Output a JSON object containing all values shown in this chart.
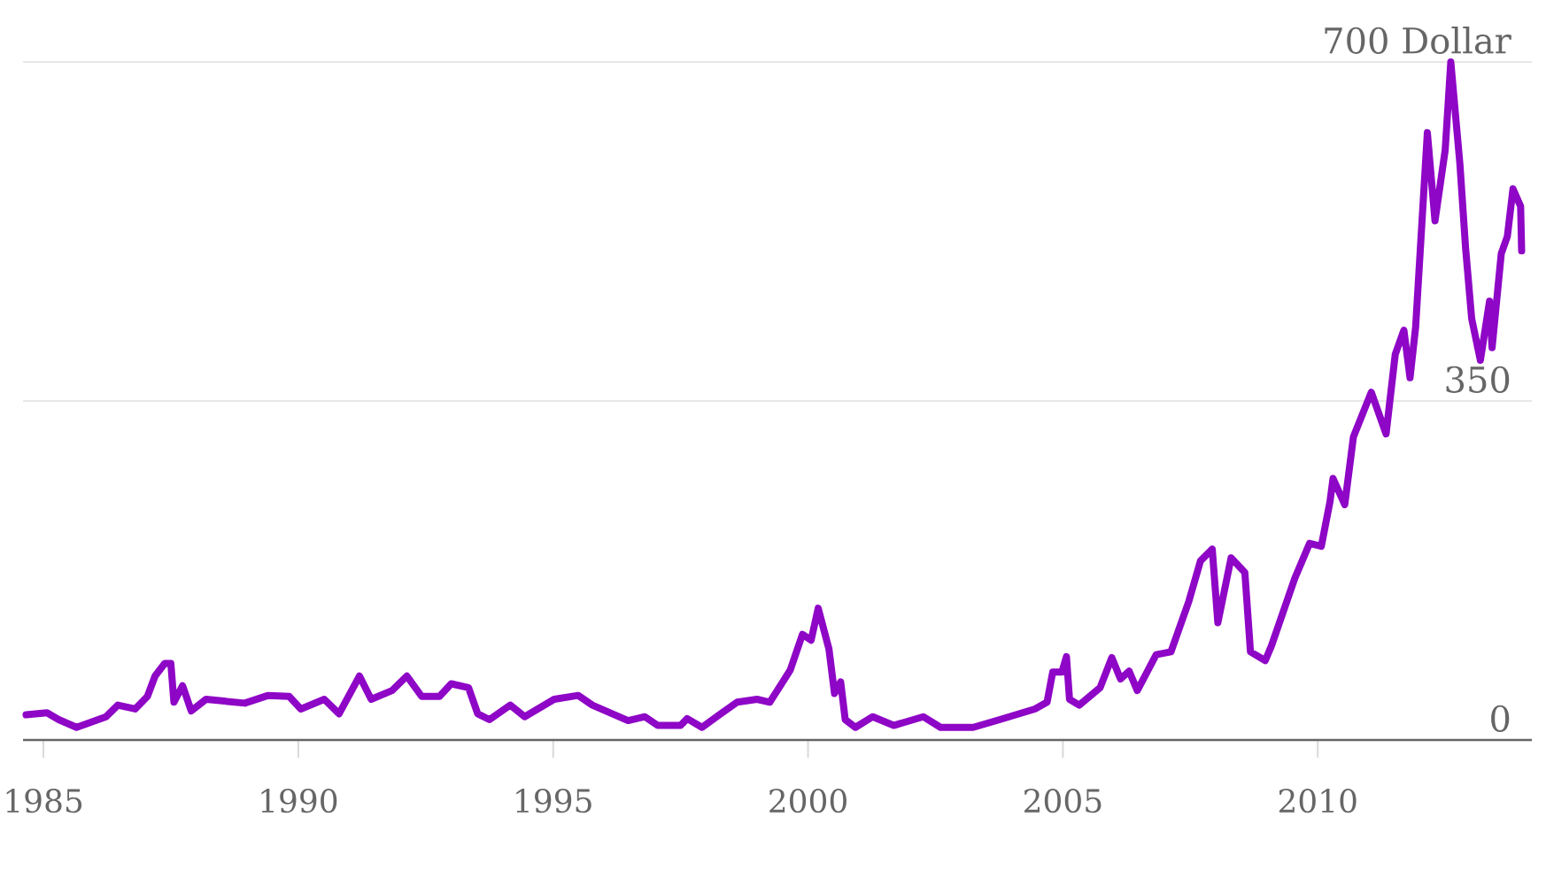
{
  "chart_data": {
    "type": "line",
    "color": "#8e06c6",
    "grid": "y",
    "marker": "none",
    "line_style": "solid",
    "xlim": [
      1984.6,
      2014.2
    ],
    "xticks": [
      1985,
      1990,
      1995,
      2000,
      2005,
      2010
    ],
    "ylim": [
      0,
      700
    ],
    "yticks": [
      0,
      350,
      {
        "value": 700,
        "label": "700 Dollar"
      }
    ],
    "x": [
      1984.66,
      1985.07,
      1985.3,
      1985.65,
      1986.23,
      1986.46,
      1986.8,
      1987.04,
      1987.19,
      1987.38,
      1987.5,
      1987.56,
      1987.73,
      1987.9,
      1988.19,
      1988.95,
      1989.41,
      1989.82,
      1990.05,
      1990.51,
      1990.8,
      1991.2,
      1991.43,
      1991.84,
      1992.13,
      1992.42,
      1992.77,
      1993.0,
      1993.34,
      1993.52,
      1993.75,
      1994.16,
      1994.44,
      1995.02,
      1995.49,
      1995.77,
      1996.47,
      1996.8,
      1997.05,
      1997.5,
      1997.63,
      1997.92,
      1998.26,
      1998.61,
      1999.0,
      1999.25,
      1999.65,
      1999.89,
      2000.06,
      2000.2,
      2000.41,
      2000.52,
      2000.64,
      2000.73,
      2000.93,
      2001.27,
      2001.68,
      2002.26,
      2002.6,
      2003.24,
      2003.76,
      2004.45,
      2004.69,
      2004.8,
      2004.98,
      2005.07,
      2005.13,
      2005.32,
      2005.73,
      2005.96,
      2006.13,
      2006.3,
      2006.46,
      2006.83,
      2007.12,
      2007.47,
      2007.7,
      2007.93,
      2008.04,
      2008.3,
      2008.57,
      2008.68,
      2008.97,
      2009.09,
      2009.55,
      2009.84,
      2010.07,
      2010.24,
      2010.3,
      2010.53,
      2010.7,
      2011.05,
      2011.34,
      2011.52,
      2011.69,
      2011.81,
      2011.92,
      2012.15,
      2012.3,
      2012.5,
      2012.61,
      2012.79,
      2012.9,
      2013.02,
      2013.19,
      2013.37,
      2013.42,
      2013.6,
      2013.72,
      2013.83,
      2013.98,
      2014.0
    ],
    "values": [
      26,
      28,
      21,
      13,
      24,
      36,
      32,
      45,
      66,
      79,
      79,
      39,
      56,
      30,
      42,
      38,
      46,
      45,
      32,
      42,
      27,
      66,
      42,
      51,
      66,
      45,
      45,
      58,
      54,
      27,
      21,
      36,
      24,
      42,
      46,
      36,
      20,
      24,
      15,
      15,
      22,
      13,
      26,
      39,
      42,
      39,
      72,
      109,
      103,
      136,
      94,
      48,
      60,
      21,
      13,
      24,
      15,
      24,
      13,
      13,
      21,
      32,
      39,
      70,
      70,
      86,
      42,
      36,
      54,
      85,
      63,
      71,
      51,
      88,
      91,
      143,
      185,
      197,
      121,
      188,
      173,
      91,
      82,
      97,
      167,
      203,
      200,
      246,
      270,
      243,
      313,
      359,
      316,
      398,
      423,
      374,
      426,
      627,
      536,
      609,
      700,
      594,
      508,
      435,
      392,
      453,
      405,
      502,
      520,
      569,
      551,
      505
    ]
  }
}
